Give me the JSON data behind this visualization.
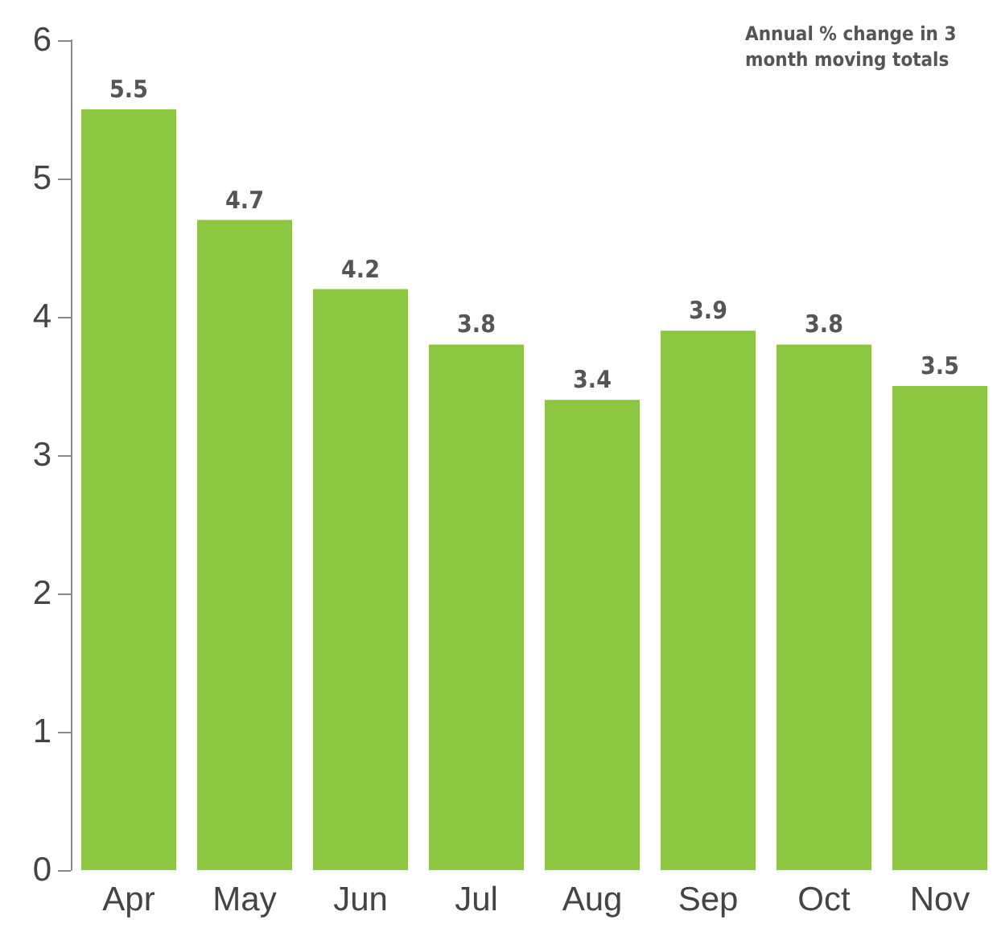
{
  "chart_data": {
    "type": "bar",
    "title": "Annual % change in 3 month moving totals",
    "categories": [
      "Apr",
      "May",
      "Jun",
      "Jul",
      "Aug",
      "Sep",
      "Oct",
      "Nov"
    ],
    "values": [
      5.5,
      4.7,
      4.2,
      3.8,
      3.4,
      3.9,
      3.8,
      3.5
    ],
    "color": "#8dc63f",
    "ylim": [
      0,
      6
    ],
    "yticks": [
      0,
      1,
      2,
      3,
      4,
      5,
      6
    ],
    "grid": false,
    "data_labels": true
  }
}
